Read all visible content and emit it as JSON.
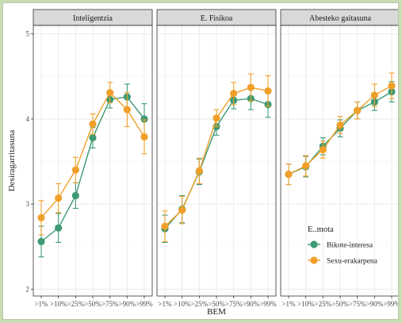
{
  "chart_data": {
    "type": "line",
    "xlabel": "BEM",
    "ylabel": "Desiragarritasuna",
    "ylim": [
      1.92,
      5.1
    ],
    "y_ticks": [
      2,
      3,
      4,
      5
    ],
    "categories": [
      ">1%",
      ">10%",
      ">25%",
      ">50%",
      ">75%",
      ">90%",
      ">99%"
    ],
    "panels": [
      "Inteligentzia",
      "E. Fisikoa",
      "Abesteko gaitasuna"
    ],
    "grid": true,
    "legend": {
      "title": "E..mota",
      "placement": "inside-right-panel",
      "entries": [
        "Bikote-interesa",
        "Sexu-erakarpena"
      ]
    },
    "colors": {
      "Bikote-interesa": "#3d9a74",
      "Sexu-erakarpena": "#f0a02a",
      "strip_bg": "#d9d9d9",
      "panel_border": "#333333",
      "grid": "#ebebeb"
    },
    "series": [
      {
        "panel": "Inteligentzia",
        "name": "Bikote-interesa",
        "values": [
          2.56,
          2.72,
          3.1,
          3.78,
          4.23,
          4.26,
          4.0
        ],
        "errors": [
          0.18,
          0.17,
          0.15,
          0.12,
          0.1,
          0.15,
          0.18
        ]
      },
      {
        "panel": "Inteligentzia",
        "name": "Sexu-erakarpena",
        "values": [
          2.84,
          3.07,
          3.4,
          3.94,
          4.31,
          4.11,
          3.79
        ],
        "errors": [
          0.2,
          0.17,
          0.15,
          0.12,
          0.12,
          0.2,
          0.2
        ]
      },
      {
        "panel": "E. Fisikoa",
        "name": "Bikote-interesa",
        "values": [
          2.71,
          2.94,
          3.38,
          3.91,
          4.22,
          4.24,
          4.17
        ],
        "errors": [
          0.16,
          0.16,
          0.15,
          0.1,
          0.1,
          0.13,
          0.15
        ]
      },
      {
        "panel": "E. Fisikoa",
        "name": "Sexu-erakarpena",
        "values": [
          2.74,
          2.93,
          3.39,
          4.01,
          4.3,
          4.37,
          4.33
        ],
        "errors": [
          0.18,
          0.16,
          0.15,
          0.1,
          0.13,
          0.16,
          0.18
        ]
      },
      {
        "panel": "Abesteko gaitasuna",
        "name": "Bikote-interesa",
        "values": [
          3.35,
          3.44,
          3.68,
          3.89,
          4.1,
          4.2,
          4.32
        ],
        "errors": [
          0.12,
          0.12,
          0.1,
          0.1,
          0.1,
          0.1,
          0.12
        ]
      },
      {
        "panel": "Abesteko gaitasuna",
        "name": "Sexu-erakarpena",
        "values": [
          3.35,
          3.45,
          3.64,
          3.93,
          4.1,
          4.28,
          4.39
        ],
        "errors": [
          0.12,
          0.12,
          0.1,
          0.1,
          0.1,
          0.13,
          0.15
        ]
      }
    ]
  }
}
